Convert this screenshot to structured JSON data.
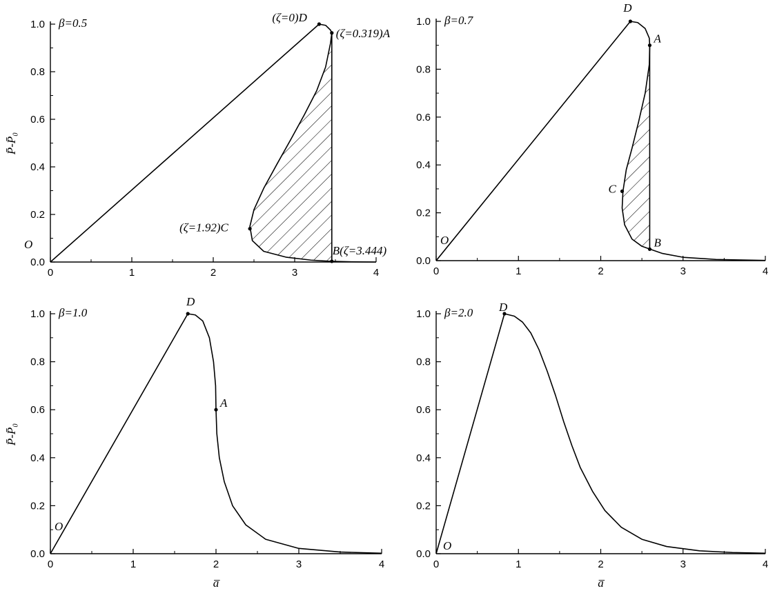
{
  "chart_data": [
    {
      "type": "line",
      "panel_label": "β=0.5",
      "xlabel": "",
      "ylabel": "P̄-P̄₀",
      "xlim": [
        0,
        4
      ],
      "ylim": [
        0,
        1.0
      ],
      "xticks": [
        "0",
        "1",
        "2",
        "3",
        "4"
      ],
      "yticks": [
        "0.0",
        "0.2",
        "0.4",
        "0.6",
        "0.8",
        "1.0"
      ],
      "series": [
        {
          "values": [
            [
              0,
              0
            ],
            [
              3.3,
              1.0
            ]
          ]
        },
        {
          "values": [
            [
              3.3,
              1.0
            ],
            [
              3.38,
              0.995
            ],
            [
              3.44,
              0.975
            ],
            [
              3.456,
              0.963
            ],
            [
              3.44,
              0.92
            ],
            [
              3.38,
              0.82
            ],
            [
              3.27,
              0.72
            ],
            [
              3.12,
              0.62
            ],
            [
              2.96,
              0.52
            ],
            [
              2.78,
              0.41
            ],
            [
              2.62,
              0.31
            ],
            [
              2.5,
              0.22
            ],
            [
              2.45,
              0.15
            ],
            [
              2.48,
              0.09
            ],
            [
              2.62,
              0.045
            ],
            [
              2.9,
              0.02
            ],
            [
              3.2,
              0.008
            ],
            [
              3.444,
              0.003
            ],
            [
              3.7,
              0.001
            ],
            [
              4.0,
              0.0
            ]
          ]
        },
        {
          "values": [
            [
              3.456,
              0.963
            ],
            [
              3.456,
              0.003
            ]
          ]
        }
      ],
      "hatched_region": "ACB",
      "points": [
        {
          "name": "O",
          "label": "O",
          "x": 0,
          "y": 0
        },
        {
          "name": "D",
          "label": "(ζ=0)D",
          "x": 3.3,
          "y": 1.0
        },
        {
          "name": "A",
          "label": "(ζ=0.319)A",
          "x": 3.456,
          "y": 0.963
        },
        {
          "name": "C",
          "label": "(ζ=1.92)C",
          "x": 2.45,
          "y": 0.14
        },
        {
          "name": "B",
          "label": "B(ζ=3.444)",
          "x": 3.456,
          "y": 0.003
        }
      ]
    },
    {
      "type": "line",
      "panel_label": "β=0.7",
      "xlabel": "",
      "ylabel": "",
      "xlim": [
        0,
        4
      ],
      "ylim": [
        0,
        1.0
      ],
      "xticks": [
        "0",
        "1",
        "2",
        "3",
        "4"
      ],
      "yticks": [
        "0.0",
        "0.2",
        "0.4",
        "0.6",
        "0.8",
        "1.0"
      ],
      "series": [
        {
          "values": [
            [
              0,
              0
            ],
            [
              2.36,
              1.0
            ]
          ]
        },
        {
          "values": [
            [
              2.36,
              1.0
            ],
            [
              2.45,
              0.995
            ],
            [
              2.54,
              0.97
            ],
            [
              2.59,
              0.93
            ],
            [
              2.595,
              0.9
            ],
            [
              2.59,
              0.82
            ],
            [
              2.54,
              0.7
            ],
            [
              2.46,
              0.58
            ],
            [
              2.38,
              0.47
            ],
            [
              2.31,
              0.38
            ],
            [
              2.27,
              0.29
            ],
            [
              2.26,
              0.22
            ],
            [
              2.29,
              0.15
            ],
            [
              2.38,
              0.09
            ],
            [
              2.5,
              0.06
            ],
            [
              2.6,
              0.048
            ],
            [
              2.75,
              0.03
            ],
            [
              3.0,
              0.014
            ],
            [
              3.4,
              0.005
            ],
            [
              4.0,
              0.001
            ]
          ]
        },
        {
          "values": [
            [
              2.595,
              0.9
            ],
            [
              2.595,
              0.048
            ]
          ]
        }
      ],
      "hatched_region": "ACB",
      "points": [
        {
          "name": "O",
          "label": "O",
          "x": 0,
          "y": 0
        },
        {
          "name": "D",
          "label": "D",
          "x": 2.36,
          "y": 1.0
        },
        {
          "name": "A",
          "label": "A",
          "x": 2.595,
          "y": 0.9
        },
        {
          "name": "C",
          "label": "C",
          "x": 2.26,
          "y": 0.29
        },
        {
          "name": "B",
          "label": "B",
          "x": 2.595,
          "y": 0.048
        }
      ]
    },
    {
      "type": "line",
      "panel_label": "β=1.0",
      "xlabel": "a̅",
      "ylabel": "P̄-P̄₀",
      "xlim": [
        0,
        4
      ],
      "ylim": [
        0,
        1.0
      ],
      "xticks": [
        "0",
        "1",
        "2",
        "3",
        "4"
      ],
      "yticks": [
        "0.0",
        "0.2",
        "0.4",
        "0.6",
        "0.8",
        "1.0"
      ],
      "series": [
        {
          "values": [
            [
              0,
              0
            ],
            [
              1.66,
              1.0
            ]
          ]
        },
        {
          "values": [
            [
              1.66,
              1.0
            ],
            [
              1.75,
              0.995
            ],
            [
              1.84,
              0.97
            ],
            [
              1.92,
              0.9
            ],
            [
              1.97,
              0.8
            ],
            [
              1.995,
              0.7
            ],
            [
              2.0,
              0.6
            ],
            [
              2.01,
              0.5
            ],
            [
              2.04,
              0.4
            ],
            [
              2.1,
              0.3
            ],
            [
              2.2,
              0.2
            ],
            [
              2.36,
              0.12
            ],
            [
              2.6,
              0.06
            ],
            [
              3.0,
              0.022
            ],
            [
              3.5,
              0.007
            ],
            [
              4.0,
              0.002
            ]
          ]
        }
      ],
      "points": [
        {
          "name": "O",
          "label": "O",
          "x": 0,
          "y": 0
        },
        {
          "name": "D",
          "label": "D",
          "x": 1.66,
          "y": 1.0
        },
        {
          "name": "A",
          "label": "A",
          "x": 2.0,
          "y": 0.6
        }
      ]
    },
    {
      "type": "line",
      "panel_label": "β=2.0",
      "xlabel": "a̅",
      "ylabel": "",
      "xlim": [
        0,
        4
      ],
      "ylim": [
        0,
        1.0
      ],
      "xticks": [
        "0",
        "1",
        "2",
        "3",
        "4"
      ],
      "yticks": [
        "0.0",
        "0.2",
        "0.4",
        "0.6",
        "0.8",
        "1.0"
      ],
      "series": [
        {
          "values": [
            [
              0,
              0
            ],
            [
              0.83,
              1.0
            ]
          ]
        },
        {
          "values": [
            [
              0.83,
              1.0
            ],
            [
              0.95,
              0.99
            ],
            [
              1.05,
              0.965
            ],
            [
              1.15,
              0.92
            ],
            [
              1.25,
              0.85
            ],
            [
              1.35,
              0.76
            ],
            [
              1.45,
              0.66
            ],
            [
              1.55,
              0.55
            ],
            [
              1.65,
              0.45
            ],
            [
              1.75,
              0.36
            ],
            [
              1.9,
              0.26
            ],
            [
              2.05,
              0.18
            ],
            [
              2.25,
              0.11
            ],
            [
              2.5,
              0.06
            ],
            [
              2.8,
              0.03
            ],
            [
              3.2,
              0.012
            ],
            [
              3.6,
              0.005
            ],
            [
              4.0,
              0.002
            ]
          ]
        }
      ],
      "points": [
        {
          "name": "O",
          "label": "O",
          "x": 0,
          "y": 0
        },
        {
          "name": "D",
          "label": "D",
          "x": 0.83,
          "y": 1.0
        }
      ]
    }
  ]
}
